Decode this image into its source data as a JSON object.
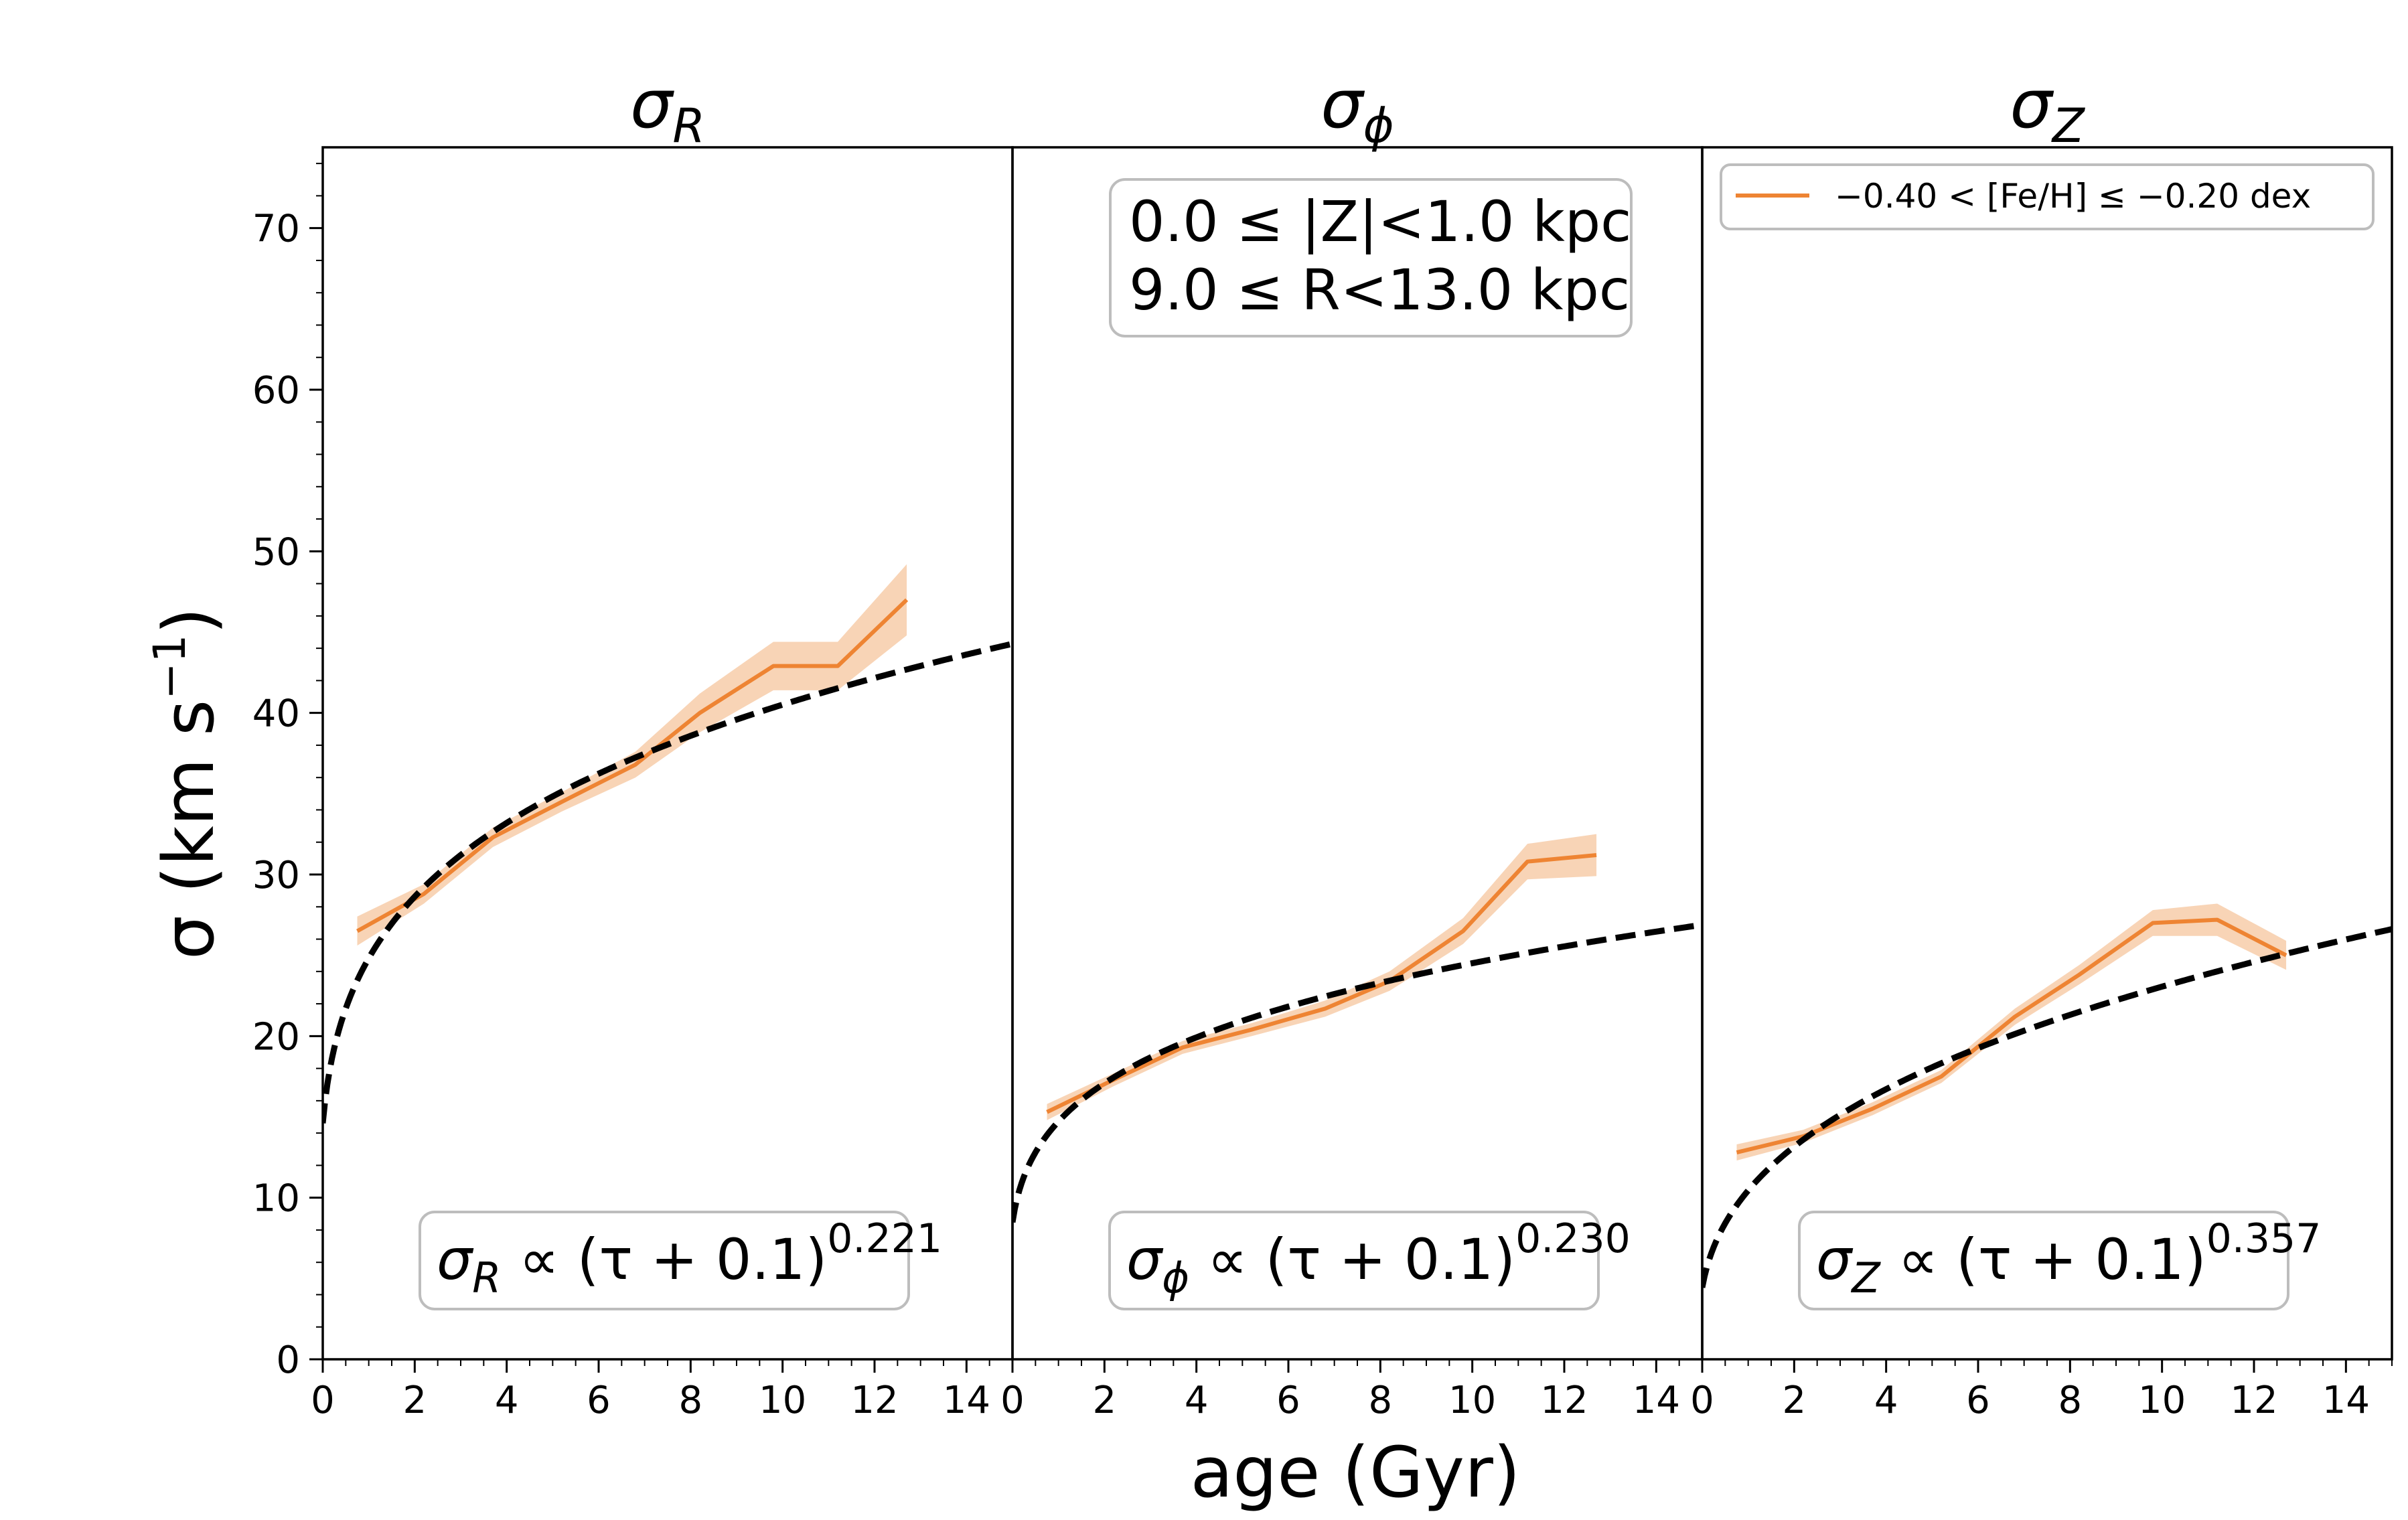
{
  "figure": {
    "xlabel": "age (Gyr)",
    "ylabel": "σ (km s",
    "ylabel_sup": "−1",
    "ylabel_close": ")"
  },
  "legend": {
    "label": "−0.40 < [Fe/H] ≤  −0.20 dex",
    "color": "#ee8433"
  },
  "zr_box": {
    "line1": "0.0 ≤ |Z|<1.0 kpc",
    "line2": "9.0 ≤ R<13.0 kpc"
  },
  "colors": {
    "data_line": "#ee8433",
    "data_band": "#f7cfae",
    "fit_line": "#000000",
    "box_edge": "#bdbdbd"
  },
  "chart_data": [
    {
      "type": "line",
      "title": "σ",
      "title_sub": "R",
      "xlim": [
        0,
        15
      ],
      "ylim": [
        0,
        75
      ],
      "xticks": [
        0,
        2,
        4,
        6,
        8,
        10,
        12,
        14
      ],
      "yticks": [
        0,
        10,
        20,
        30,
        40,
        50,
        60,
        70
      ],
      "xlabel": "age (Gyr)",
      "ylabel": "σ (km s−1)",
      "series": [
        {
          "name": "−0.40 < [Fe/H] ≤  −0.20 dex",
          "x": [
            0.75,
            2.2,
            3.7,
            5.2,
            6.8,
            8.2,
            9.8,
            11.2,
            12.7
          ],
          "y": [
            26.5,
            28.8,
            32.3,
            34.5,
            36.8,
            40.0,
            42.9,
            42.9,
            47.0
          ],
          "err": [
            0.9,
            0.6,
            0.6,
            0.6,
            0.8,
            1.2,
            1.5,
            1.5,
            2.2
          ]
        }
      ],
      "fit": {
        "label_sym": "σ",
        "label_sub": "R",
        "label_mid": " ∝  (τ + 0.1)",
        "exponent": "0.221",
        "amplitude": 24.3,
        "power": 0.221
      }
    },
    {
      "type": "line",
      "title": "σ",
      "title_sub": "ϕ",
      "xlim": [
        0,
        15
      ],
      "ylim": [
        0,
        75
      ],
      "xticks": [
        0,
        2,
        4,
        6,
        8,
        10,
        12,
        14
      ],
      "yticks": [
        0,
        10,
        20,
        30,
        40,
        50,
        60,
        70
      ],
      "series": [
        {
          "name": "−0.40 < [Fe/H] ≤  −0.20 dex",
          "x": [
            0.75,
            2.2,
            3.7,
            5.2,
            6.8,
            8.2,
            9.8,
            11.2,
            12.7
          ],
          "y": [
            15.3,
            17.3,
            19.3,
            20.4,
            21.7,
            23.4,
            26.5,
            30.8,
            31.2
          ],
          "err": [
            0.5,
            0.4,
            0.4,
            0.4,
            0.5,
            0.6,
            0.8,
            1.1,
            1.3
          ]
        }
      ],
      "fit": {
        "label_sym": "σ",
        "label_sub": "ϕ",
        "label_mid": " ∝  (τ + 0.1)",
        "exponent": "0.230",
        "amplitude": 14.4,
        "power": 0.23
      }
    },
    {
      "type": "line",
      "title": "σ",
      "title_sub": "Z",
      "xlim": [
        0,
        15
      ],
      "ylim": [
        0,
        75
      ],
      "xticks": [
        0,
        2,
        4,
        6,
        8,
        10,
        12,
        14
      ],
      "yticks": [
        0,
        10,
        20,
        30,
        40,
        50,
        60,
        70
      ],
      "series": [
        {
          "name": "−0.40 < [Fe/H] ≤  −0.20 dex",
          "x": [
            0.75,
            2.2,
            3.7,
            5.2,
            6.8,
            8.2,
            9.8,
            11.2,
            12.7
          ],
          "y": [
            12.8,
            13.8,
            15.5,
            17.5,
            21.2,
            23.8,
            27.0,
            27.2,
            25.0
          ],
          "err": [
            0.5,
            0.4,
            0.4,
            0.4,
            0.5,
            0.6,
            0.8,
            1.0,
            0.9
          ]
        }
      ],
      "fit": {
        "label_sym": "σ",
        "label_sub": "Z",
        "label_mid": " ∝  (τ + 0.1)",
        "exponent": "0.357",
        "amplitude": 10.1,
        "power": 0.357
      }
    }
  ]
}
